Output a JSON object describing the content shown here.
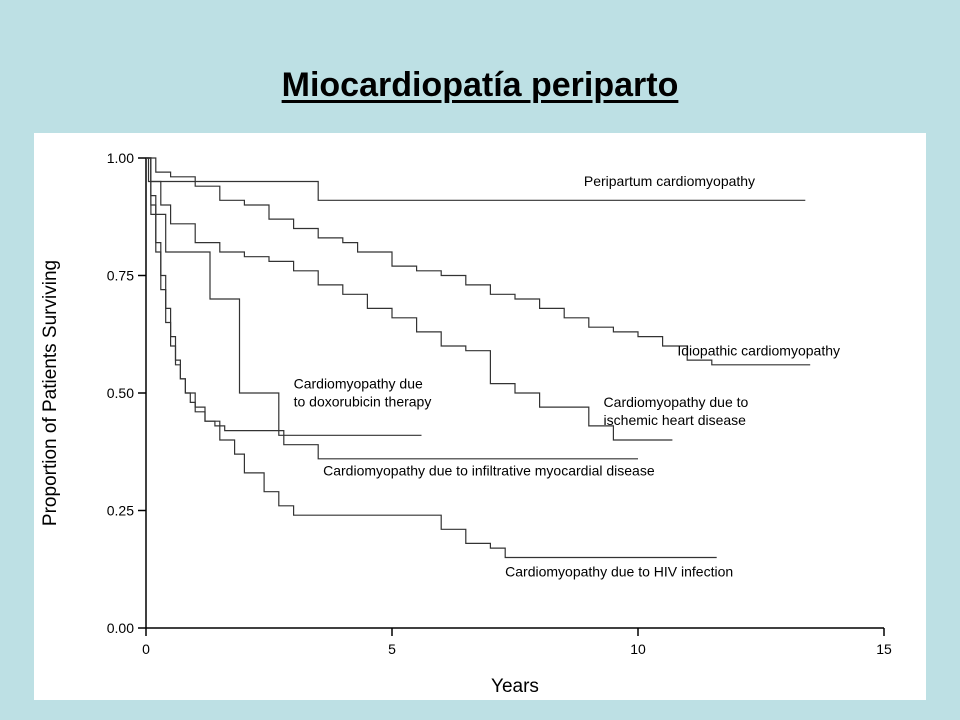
{
  "slide": {
    "title": "Miocardiopatía periparto"
  },
  "colors": {
    "background": "#bde0e4",
    "panel": "#ffffff",
    "line": "#333333"
  },
  "chart_data": {
    "type": "line",
    "title": "",
    "xlabel": "Years",
    "ylabel": "Proportion of Patients Surviving",
    "xlim": [
      0,
      15
    ],
    "ylim": [
      0,
      1
    ],
    "xticks": [
      0,
      5,
      10,
      15
    ],
    "xtick_labels": [
      "0",
      "5",
      "10",
      "15"
    ],
    "yticks": [
      0,
      0.25,
      0.5,
      0.75,
      1
    ],
    "ytick_labels": [
      "0.00",
      "0.25",
      "0.50",
      "0.75",
      "1.00"
    ],
    "grid": false,
    "legend": "none",
    "series": [
      {
        "name": "Peripartum cardiomyopathy",
        "x": [
          0,
          0.05,
          0.4,
          3.5,
          3.5,
          13.4
        ],
        "y": [
          1.0,
          0.95,
          0.95,
          0.95,
          0.91,
          0.91
        ]
      },
      {
        "name": "Idiopathic cardiomyopathy",
        "x": [
          0,
          0.2,
          0.5,
          1.0,
          1.5,
          2.0,
          2.5,
          3.0,
          3.5,
          4.0,
          4.3,
          5.0,
          5.5,
          6.0,
          6.5,
          7.0,
          7.5,
          8.0,
          8.5,
          9.0,
          9.5,
          10.0,
          10.5,
          11.0,
          11.5,
          12.0,
          13.5
        ],
        "y": [
          1.0,
          0.97,
          0.96,
          0.94,
          0.91,
          0.9,
          0.87,
          0.85,
          0.83,
          0.82,
          0.8,
          0.77,
          0.76,
          0.75,
          0.73,
          0.71,
          0.7,
          0.68,
          0.66,
          0.64,
          0.63,
          0.62,
          0.6,
          0.57,
          0.56,
          0.56,
          0.56
        ]
      },
      {
        "name": "Cardiomyopathy due to ischemic heart disease",
        "x": [
          0,
          0.1,
          0.3,
          0.5,
          1.0,
          1.5,
          2.0,
          2.5,
          3.0,
          3.5,
          4.0,
          4.5,
          5.0,
          5.5,
          6.0,
          6.5,
          7.0,
          7.5,
          8.0,
          8.5,
          9.0,
          9.5,
          10.0,
          10.7
        ],
        "y": [
          1.0,
          0.95,
          0.9,
          0.86,
          0.82,
          0.8,
          0.79,
          0.78,
          0.76,
          0.73,
          0.71,
          0.68,
          0.66,
          0.63,
          0.6,
          0.59,
          0.52,
          0.5,
          0.47,
          0.47,
          0.43,
          0.4,
          0.4,
          0.4
        ]
      },
      {
        "name": "Cardiomyopathy due to doxorubicin therapy",
        "x": [
          0,
          0.1,
          0.2,
          0.4,
          1.3,
          1.3,
          1.9,
          1.9,
          2.7,
          2.7,
          5.6
        ],
        "y": [
          1.0,
          0.92,
          0.88,
          0.8,
          0.8,
          0.7,
          0.7,
          0.5,
          0.5,
          0.41,
          0.41
        ]
      },
      {
        "name": "Cardiomyopathy due to infiltrative myocardial disease",
        "x": [
          0,
          0.1,
          0.2,
          0.3,
          0.4,
          0.5,
          0.6,
          0.7,
          0.8,
          0.9,
          1.0,
          1.2,
          1.4,
          1.6,
          1.8,
          2.0,
          2.4,
          2.8,
          3.5,
          5.0,
          10.0
        ],
        "y": [
          1.0,
          0.9,
          0.82,
          0.75,
          0.68,
          0.62,
          0.57,
          0.53,
          0.5,
          0.48,
          0.46,
          0.44,
          0.43,
          0.42,
          0.42,
          0.42,
          0.42,
          0.39,
          0.36,
          0.36,
          0.36
        ]
      },
      {
        "name": "Cardiomyopathy due to HIV infection",
        "x": [
          0,
          0.1,
          0.2,
          0.3,
          0.4,
          0.5,
          0.6,
          0.7,
          0.8,
          1.0,
          1.2,
          1.5,
          1.8,
          2.0,
          2.4,
          2.7,
          3.0,
          4.0,
          5.0,
          6.0,
          6.5,
          7.0,
          7.3,
          8.0,
          9.0,
          11.6
        ],
        "y": [
          1.0,
          0.88,
          0.8,
          0.72,
          0.65,
          0.6,
          0.56,
          0.53,
          0.5,
          0.47,
          0.44,
          0.4,
          0.37,
          0.33,
          0.29,
          0.26,
          0.24,
          0.24,
          0.24,
          0.21,
          0.18,
          0.17,
          0.15,
          0.15,
          0.15,
          0.15
        ]
      }
    ],
    "annotations": [
      {
        "lines": [
          "Peripartum cardiomyopathy"
        ],
        "x": 8.9,
        "y": 0.94,
        "series": 0
      },
      {
        "lines": [
          "Idiopathic cardiomyopathy"
        ],
        "x": 10.8,
        "y": 0.58,
        "series": 1
      },
      {
        "lines": [
          "Cardiomyopathy due to",
          "ischemic heart disease"
        ],
        "x": 9.3,
        "y": 0.47,
        "series": 2
      },
      {
        "lines": [
          "Cardiomyopathy due",
          "to doxorubicin therapy"
        ],
        "x": 3.0,
        "y": 0.51,
        "series": 3
      },
      {
        "lines": [
          "Cardiomyopathy due to infiltrative myocardial disease"
        ],
        "x": 3.6,
        "y": 0.325,
        "series": 4
      },
      {
        "lines": [
          "Cardiomyopathy due to HIV infection"
        ],
        "x": 7.3,
        "y": 0.11,
        "series": 5
      }
    ]
  }
}
